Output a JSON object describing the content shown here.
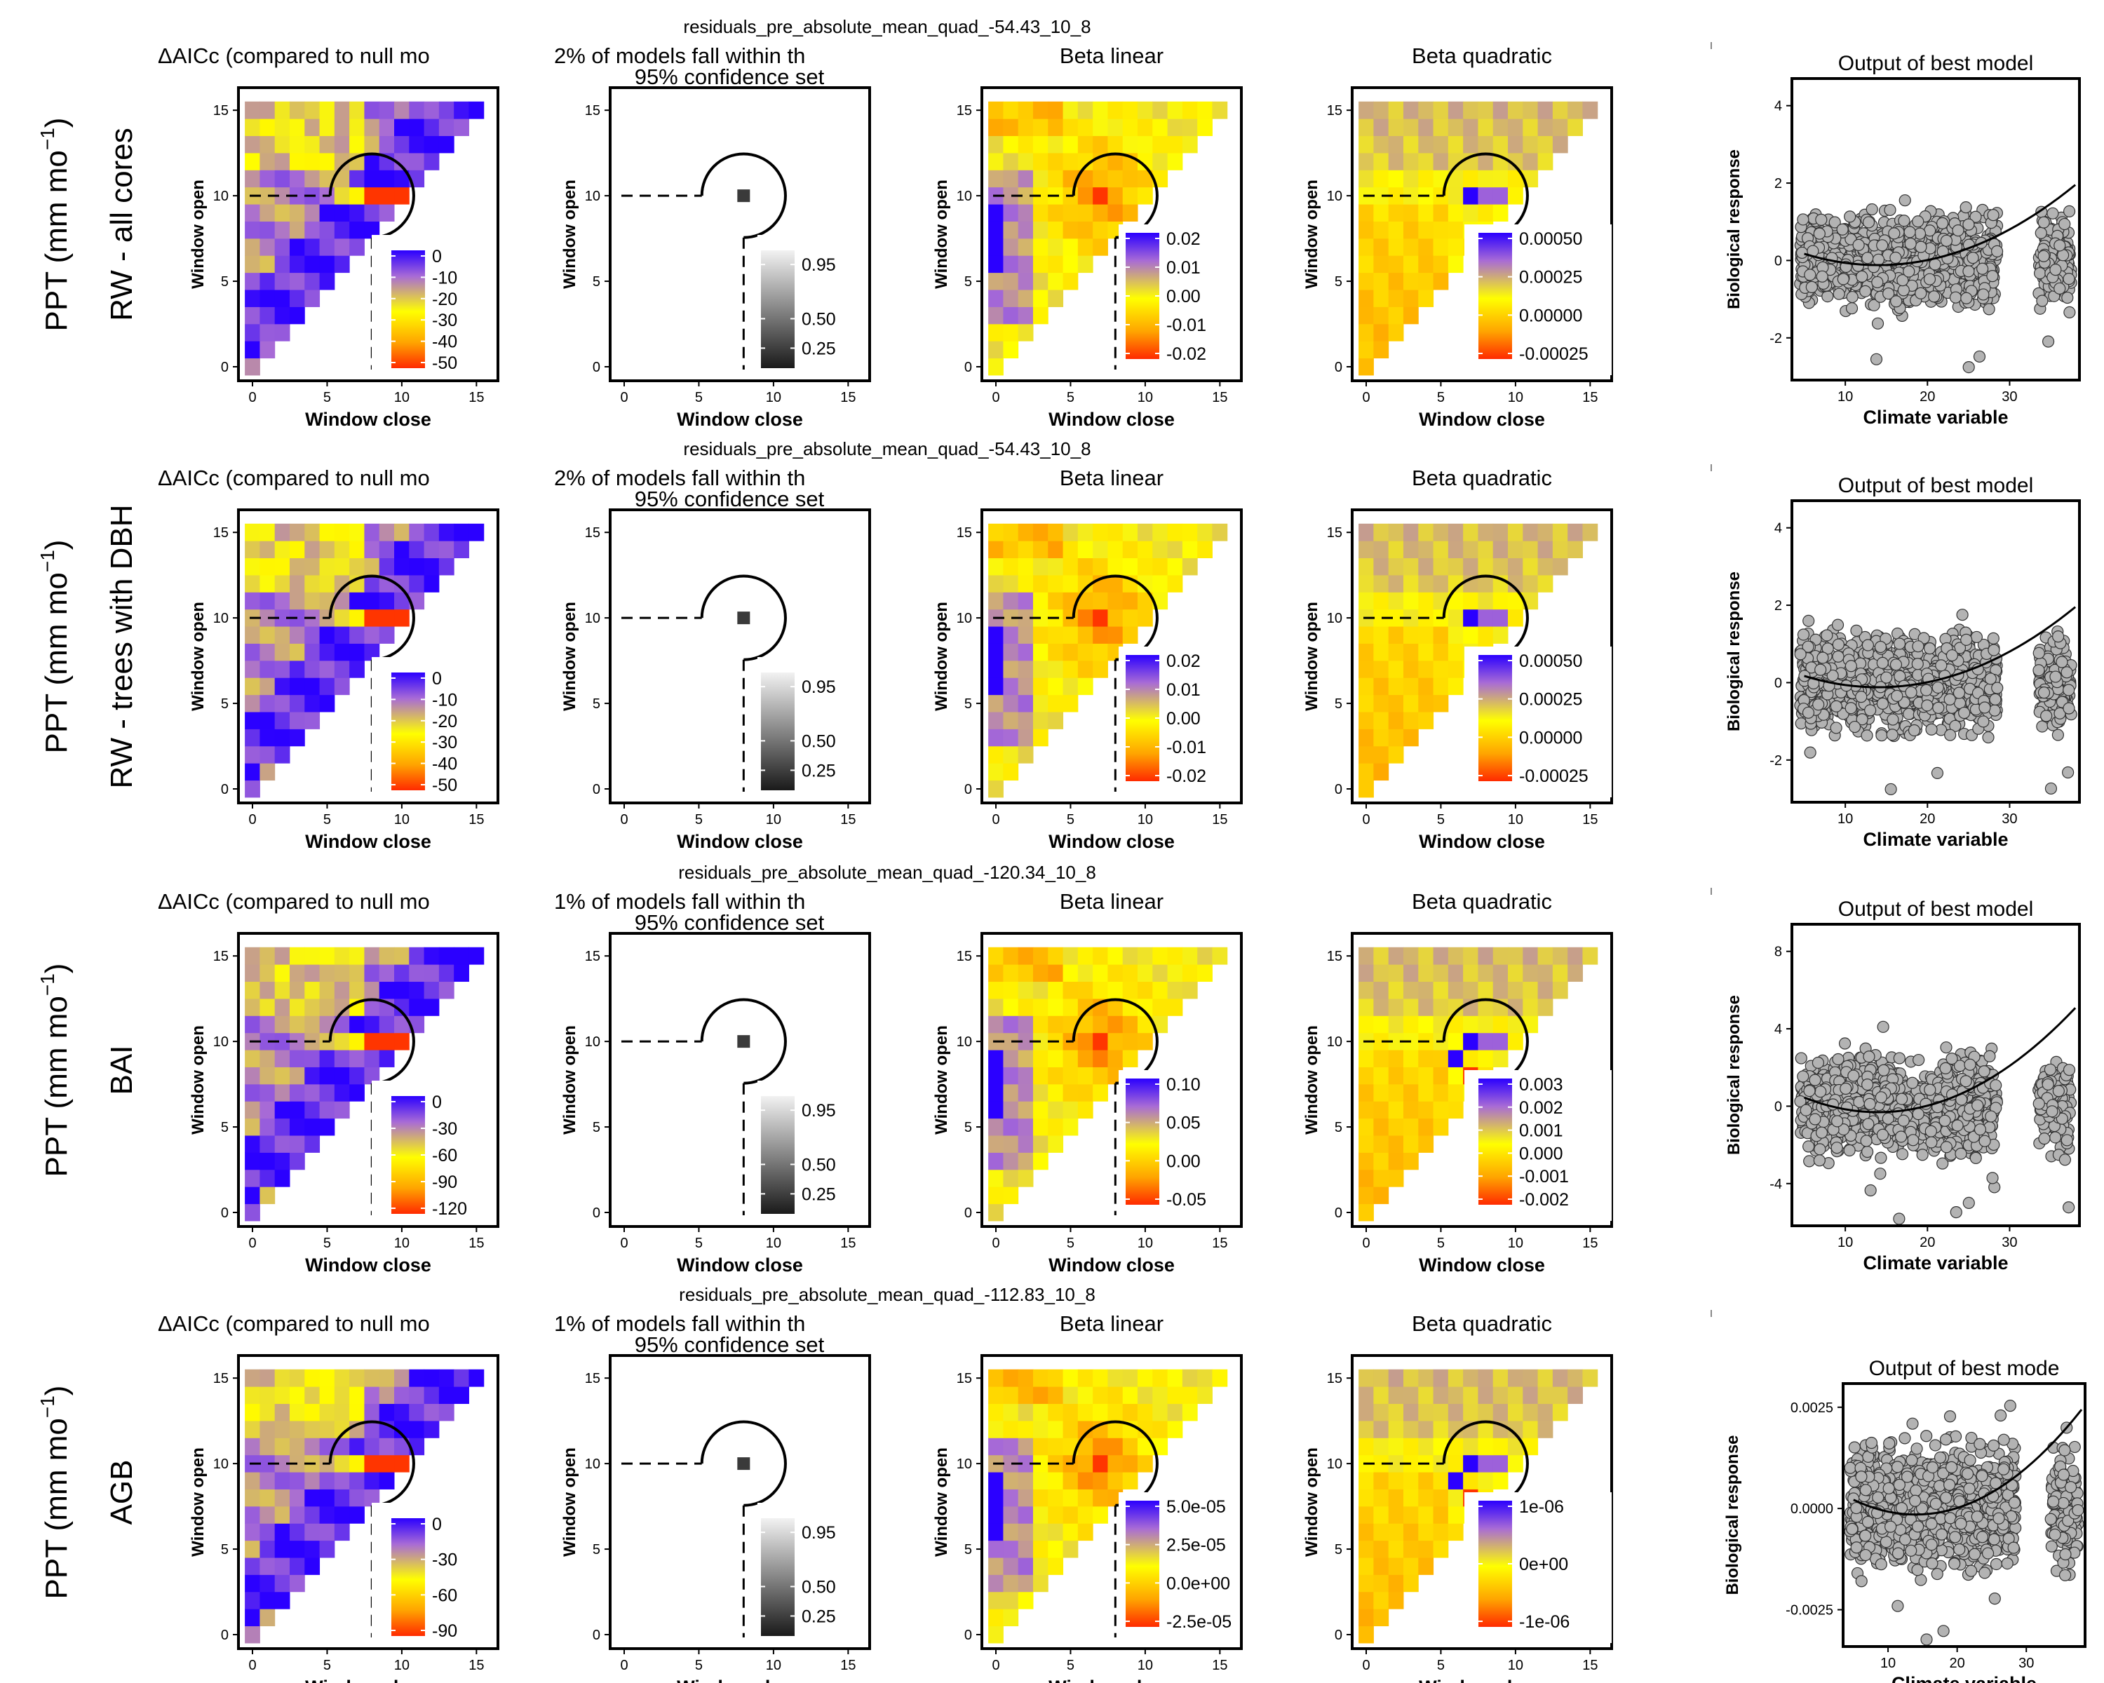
{
  "rows": [
    {
      "ylabel_line1": "PPT (mm mo",
      "ylabel_sup": "−1",
      "ylabel_line1_end": ")",
      "ylabel_line2": "RW - all cores",
      "model_label": "residuals_pre_absolute_mean_quad_-54.43_10_8",
      "pct_text": "2% of models fall within th",
      "aic_ticks": [
        "0",
        "-10",
        "-20",
        "-30",
        "-40",
        "-50"
      ],
      "lin_ticks": [
        "0.02",
        "0.01",
        "0.00",
        "-0.01",
        "-0.02"
      ],
      "quad_ticks": [
        "0.00050",
        "0.00025",
        "0.00000",
        "-0.00025"
      ],
      "best_yticks": [
        "4",
        "2",
        "0",
        "-2"
      ],
      "best_title": "Output of best model"
    },
    {
      "ylabel_line1": "PPT (mm mo",
      "ylabel_sup": "−1",
      "ylabel_line1_end": ")",
      "ylabel_line2": "RW - trees with DBH",
      "model_label": "residuals_pre_absolute_mean_quad_-54.43_10_8",
      "pct_text": "2% of models fall within th",
      "aic_ticks": [
        "0",
        "-10",
        "-20",
        "-30",
        "-40",
        "-50"
      ],
      "lin_ticks": [
        "0.02",
        "0.01",
        "0.00",
        "-0.01",
        "-0.02"
      ],
      "quad_ticks": [
        "0.00050",
        "0.00025",
        "0.00000",
        "-0.00025"
      ],
      "best_yticks": [
        "4",
        "2",
        "0",
        "-2"
      ],
      "best_title": "Output of best model"
    },
    {
      "ylabel_line1": "PPT (mm mo",
      "ylabel_sup": "−1",
      "ylabel_line1_end": ")",
      "ylabel_line2": "BAI",
      "model_label": "residuals_pre_absolute_mean_quad_-120.34_10_8",
      "pct_text": "1% of models fall within th",
      "aic_ticks": [
        "0",
        "-30",
        "-60",
        "-90",
        "-120"
      ],
      "lin_ticks": [
        "0.10",
        "0.05",
        "0.00",
        "-0.05"
      ],
      "quad_ticks": [
        "0.003",
        "0.002",
        "0.001",
        "0.000",
        "-0.001",
        "-0.002"
      ],
      "best_yticks": [
        "8",
        "4",
        "0",
        "-4"
      ],
      "best_title": "Output of best model"
    },
    {
      "ylabel_line1": "PPT (mm mo",
      "ylabel_sup": "−1",
      "ylabel_line1_end": ")",
      "ylabel_line2": "AGB",
      "model_label": "residuals_pre_absolute_mean_quad_-112.83_10_8",
      "pct_text": "1% of models fall within th",
      "aic_ticks": [
        "0",
        "-30",
        "-60",
        "-90"
      ],
      "lin_ticks": [
        "5.0e-05",
        "2.5e-05",
        "0.0e+00",
        "-2.5e-05"
      ],
      "quad_ticks": [
        "1e-06",
        "0e+00",
        "-1e-06"
      ],
      "best_yticks": [
        "0.0025",
        "0.0000",
        "-0.0025"
      ],
      "best_title": "Output of best mode"
    }
  ],
  "common": {
    "aic_title": "ΔAICc (compared to null mo",
    "conf_text": "95% confidence set",
    "lin_title": "Beta linear",
    "quad_title": "Beta quadratic",
    "window_open": "Window open",
    "window_close": "Window close",
    "axis_ticks": [
      "0",
      "5",
      "10",
      "15"
    ],
    "gray_ticks": [
      "0.95",
      "0.50",
      "0.25"
    ],
    "bio_response": "Biological response",
    "climate_variable": "Climate variable",
    "climate_ticks": [
      "10",
      "20",
      "30"
    ]
  },
  "chart_data": {
    "type": "heatmap",
    "panels_per_row": [
      "ΔAICc heatmap",
      "confidence set",
      "Beta linear heatmap",
      "Beta quadratic heatmap",
      "scatter with fitted curve"
    ],
    "best_window": {
      "open": 10,
      "close": 8
    },
    "window_range": [
      0,
      15
    ],
    "colors": {
      "high": "#2b00ff",
      "mid_high": "#a86bd6",
      "mid": "#ffff00",
      "mid_low": "#ffa500",
      "low": "#ff2a00",
      "gray_high": "#f2f2f2",
      "gray_low": "#1a1a1a",
      "point": "#b3b3b3"
    }
  }
}
